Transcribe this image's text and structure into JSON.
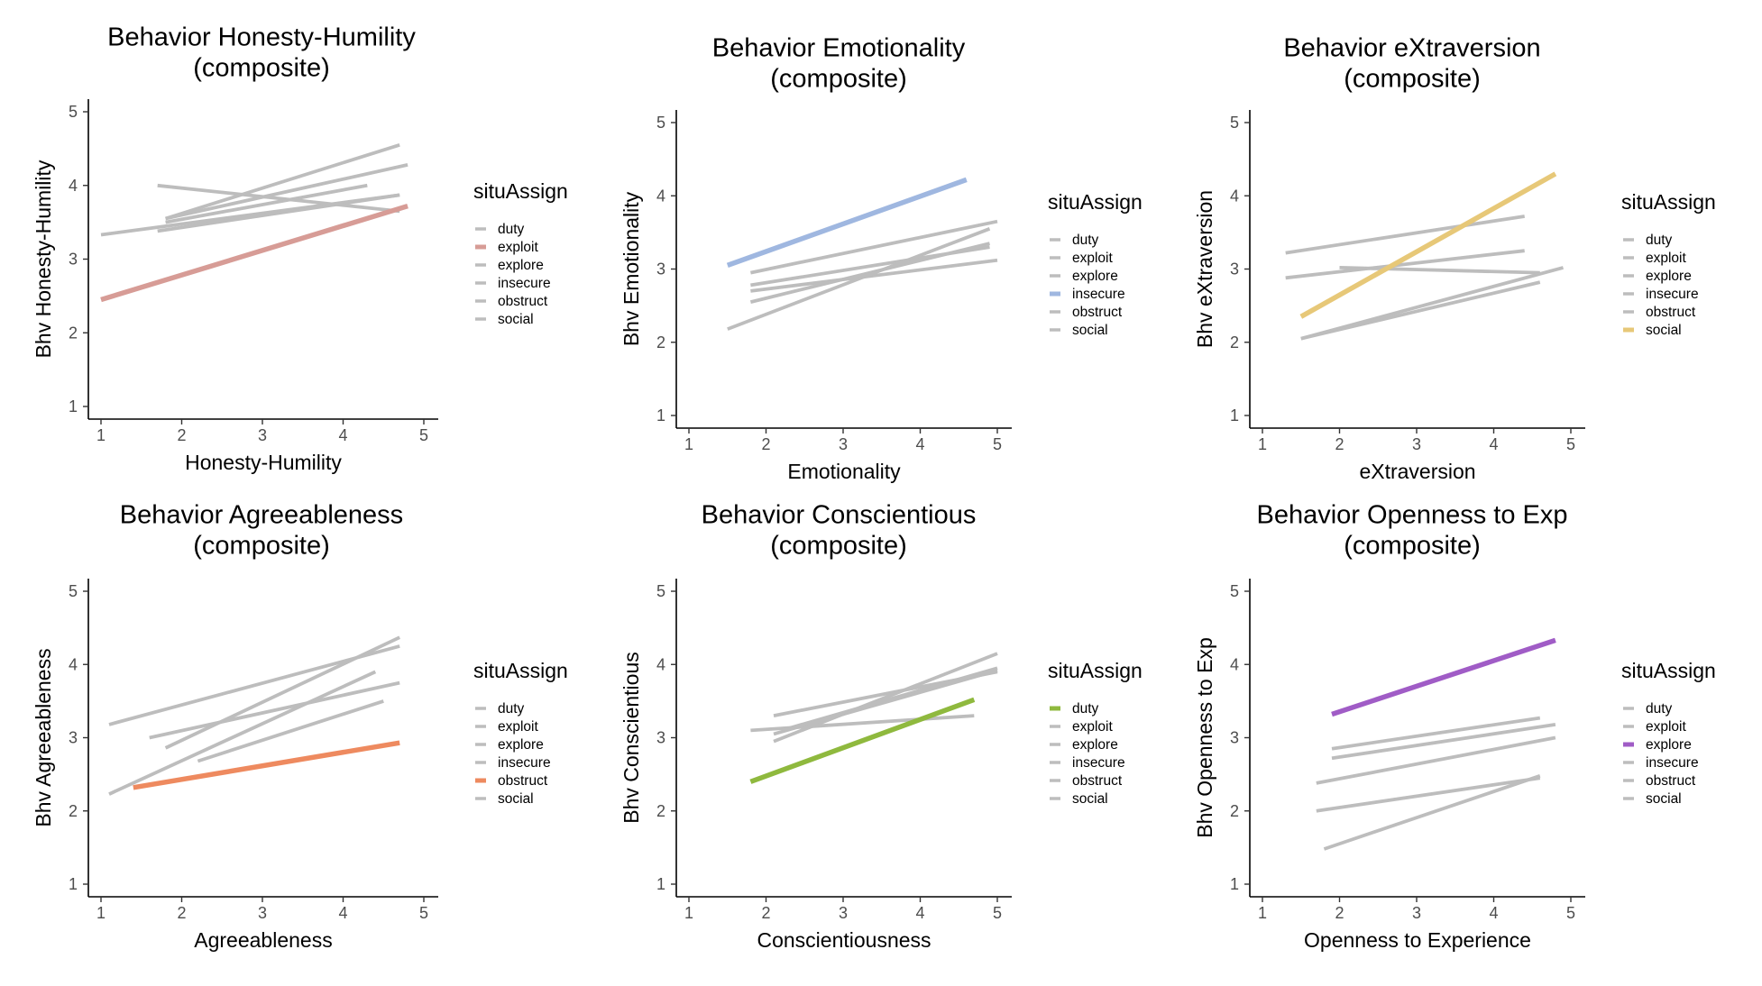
{
  "legend": {
    "title": "situAssign",
    "items": [
      "duty",
      "exploit",
      "explore",
      "insecure",
      "obstruct",
      "social"
    ]
  },
  "colors": {
    "grey": "#bdbdbd",
    "axis": "#000000",
    "exploit": "#d79c96",
    "insecure": "#9fb7e0",
    "social": "#e7c878",
    "obstruct": "#ee8a5f",
    "duty": "#8fb93e",
    "explore": "#a05cc6"
  },
  "chart_data": [
    {
      "type": "line",
      "title": [
        "Behavior Honesty-Humility",
        "(composite)"
      ],
      "xlabel": "Honesty-Humility",
      "ylabel": "Bhv Honesty-Humility",
      "xlim": [
        1,
        5
      ],
      "ylim": [
        1,
        5
      ],
      "xticks": [
        1,
        2,
        3,
        4,
        5
      ],
      "yticks": [
        1,
        2,
        3,
        4,
        5
      ],
      "highlight": "exploit",
      "series": [
        {
          "name": "duty",
          "x": [
            1.0,
            4.7
          ],
          "y": [
            3.33,
            3.87
          ]
        },
        {
          "name": "exploit",
          "x": [
            1.0,
            4.8
          ],
          "y": [
            2.45,
            3.72
          ]
        },
        {
          "name": "explore",
          "x": [
            1.8,
            4.8
          ],
          "y": [
            3.55,
            4.28
          ]
        },
        {
          "name": "insecure",
          "x": [
            1.7,
            4.7
          ],
          "y": [
            3.38,
            3.87
          ]
        },
        {
          "name": "obstruct",
          "x": [
            1.8,
            4.3
          ],
          "y": [
            3.5,
            4.0
          ]
        },
        {
          "name": "social",
          "x": [
            1.7,
            4.7
          ],
          "y": [
            4.0,
            3.65
          ]
        },
        {
          "name": "",
          "x": [
            1.8,
            4.7
          ],
          "y": [
            3.55,
            4.55
          ]
        }
      ]
    },
    {
      "type": "line",
      "title": [
        "Behavior Emotionality",
        "(composite)"
      ],
      "xlabel": "Emotionality",
      "ylabel": "Bhv Emotionality",
      "xlim": [
        1,
        5
      ],
      "ylim": [
        1,
        5
      ],
      "xticks": [
        1,
        2,
        3,
        4,
        5
      ],
      "yticks": [
        1,
        2,
        3,
        4,
        5
      ],
      "highlight": "insecure",
      "series": [
        {
          "name": "duty",
          "x": [
            1.8,
            5.0
          ],
          "y": [
            2.95,
            3.65
          ]
        },
        {
          "name": "exploit",
          "x": [
            1.8,
            4.9
          ],
          "y": [
            2.78,
            3.3
          ]
        },
        {
          "name": "explore",
          "x": [
            1.8,
            5.0
          ],
          "y": [
            2.7,
            3.12
          ]
        },
        {
          "name": "insecure",
          "x": [
            1.5,
            4.6
          ],
          "y": [
            3.05,
            4.22
          ]
        },
        {
          "name": "obstruct",
          "x": [
            1.5,
            4.9
          ],
          "y": [
            2.18,
            3.55
          ]
        },
        {
          "name": "social",
          "x": [
            1.8,
            4.9
          ],
          "y": [
            2.55,
            3.35
          ]
        }
      ]
    },
    {
      "type": "line",
      "title": [
        "Behavior eXtraversion",
        "(composite)"
      ],
      "xlabel": "eXtraversion",
      "ylabel": "Bhv eXtraversion",
      "xlim": [
        1,
        5
      ],
      "ylim": [
        1,
        5
      ],
      "xticks": [
        1,
        2,
        3,
        4,
        5
      ],
      "yticks": [
        1,
        2,
        3,
        4,
        5
      ],
      "highlight": "social",
      "series": [
        {
          "name": "duty",
          "x": [
            1.3,
            4.4
          ],
          "y": [
            3.22,
            3.72
          ]
        },
        {
          "name": "exploit",
          "x": [
            1.3,
            4.4
          ],
          "y": [
            2.88,
            3.25
          ]
        },
        {
          "name": "explore",
          "x": [
            2.0,
            4.6
          ],
          "y": [
            3.02,
            2.95
          ]
        },
        {
          "name": "insecure",
          "x": [
            1.5,
            4.6
          ],
          "y": [
            2.05,
            2.82
          ]
        },
        {
          "name": "obstruct",
          "x": [
            1.5,
            4.9
          ],
          "y": [
            2.05,
            3.02
          ]
        },
        {
          "name": "social",
          "x": [
            1.5,
            4.8
          ],
          "y": [
            2.35,
            4.3
          ]
        }
      ]
    },
    {
      "type": "line",
      "title": [
        "Behavior Agreeableness",
        "(composite)"
      ],
      "xlabel": "Agreeableness",
      "ylabel": "Bhv Agreeableness",
      "xlim": [
        1,
        5
      ],
      "ylim": [
        1,
        5
      ],
      "xticks": [
        1,
        2,
        3,
        4,
        5
      ],
      "yticks": [
        1,
        2,
        3,
        4,
        5
      ],
      "highlight": "obstruct",
      "series": [
        {
          "name": "duty",
          "x": [
            1.1,
            4.7
          ],
          "y": [
            3.18,
            4.25
          ]
        },
        {
          "name": "exploit",
          "x": [
            1.6,
            4.7
          ],
          "y": [
            3.0,
            3.75
          ]
        },
        {
          "name": "explore",
          "x": [
            1.1,
            4.4
          ],
          "y": [
            2.23,
            3.9
          ]
        },
        {
          "name": "insecure",
          "x": [
            2.2,
            4.5
          ],
          "y": [
            2.68,
            3.5
          ]
        },
        {
          "name": "obstruct",
          "x": [
            1.4,
            4.7
          ],
          "y": [
            2.32,
            2.93
          ]
        },
        {
          "name": "social",
          "x": [
            1.8,
            4.7
          ],
          "y": [
            2.86,
            4.37
          ]
        }
      ]
    },
    {
      "type": "line",
      "title": [
        "Behavior Conscientious",
        "(composite)"
      ],
      "xlabel": "Conscientiousness",
      "ylabel": "Bhv Conscientious",
      "xlim": [
        1,
        5
      ],
      "ylim": [
        1,
        5
      ],
      "xticks": [
        1,
        2,
        3,
        4,
        5
      ],
      "yticks": [
        1,
        2,
        3,
        4,
        5
      ],
      "highlight": "duty",
      "series": [
        {
          "name": "duty",
          "x": [
            1.8,
            4.7
          ],
          "y": [
            2.4,
            3.52
          ]
        },
        {
          "name": "exploit",
          "x": [
            1.8,
            4.7
          ],
          "y": [
            3.1,
            3.3
          ]
        },
        {
          "name": "explore",
          "x": [
            2.1,
            5.0
          ],
          "y": [
            3.3,
            3.9
          ]
        },
        {
          "name": "insecure",
          "x": [
            2.1,
            5.0
          ],
          "y": [
            2.95,
            4.15
          ]
        },
        {
          "name": "obstruct",
          "x": [
            2.1,
            5.0
          ],
          "y": [
            3.05,
            3.92
          ]
        },
        {
          "name": "social",
          "x": [
            2.2,
            5.0
          ],
          "y": [
            3.1,
            3.95
          ]
        }
      ]
    },
    {
      "type": "line",
      "title": [
        "Behavior Openness to Exp",
        "(composite)"
      ],
      "xlabel": "Openness to Experience",
      "ylabel": "Bhv Openness to Exp",
      "xlim": [
        1,
        5
      ],
      "ylim": [
        1,
        5
      ],
      "xticks": [
        1,
        2,
        3,
        4,
        5
      ],
      "yticks": [
        1,
        2,
        3,
        4,
        5
      ],
      "highlight": "explore",
      "series": [
        {
          "name": "duty",
          "x": [
            1.9,
            4.8
          ],
          "y": [
            2.72,
            3.18
          ]
        },
        {
          "name": "exploit",
          "x": [
            1.9,
            4.6
          ],
          "y": [
            2.85,
            3.27
          ]
        },
        {
          "name": "explore",
          "x": [
            1.9,
            4.8
          ],
          "y": [
            3.32,
            4.33
          ]
        },
        {
          "name": "insecure",
          "x": [
            1.7,
            4.8
          ],
          "y": [
            2.38,
            3.0
          ]
        },
        {
          "name": "obstruct",
          "x": [
            1.7,
            4.6
          ],
          "y": [
            2.0,
            2.45
          ]
        },
        {
          "name": "social",
          "x": [
            1.8,
            4.6
          ],
          "y": [
            1.48,
            2.48
          ]
        }
      ]
    }
  ]
}
